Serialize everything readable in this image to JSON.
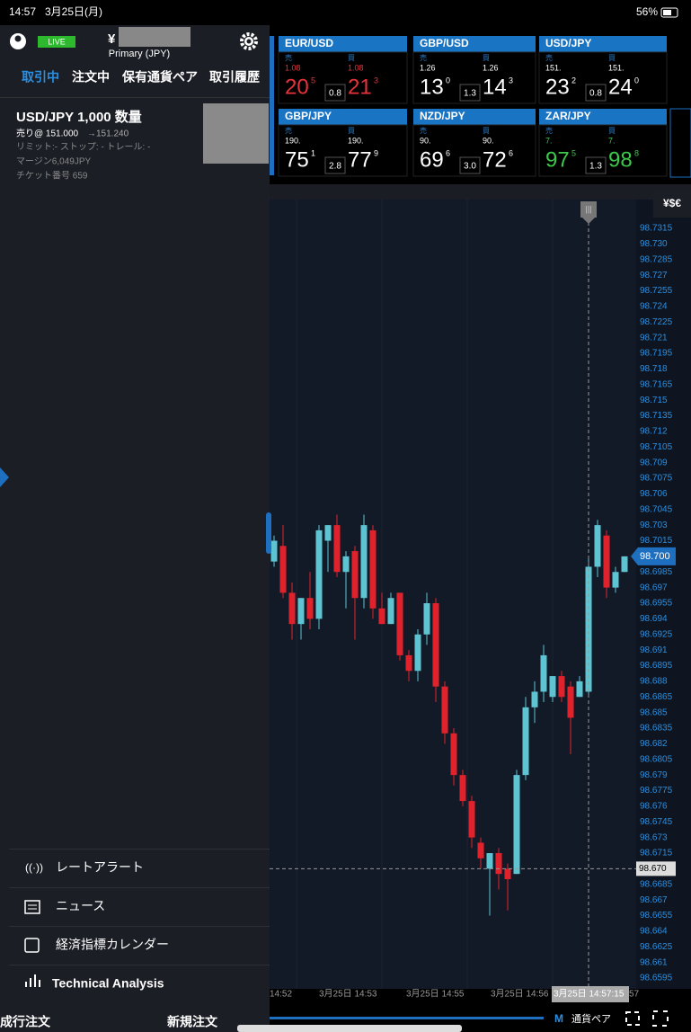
{
  "status_bar": {
    "time": "14:57",
    "date": "3月25日(月)",
    "battery": "56%"
  },
  "account": {
    "badge": "LIVE",
    "currency_symbol": "¥",
    "account_name": "Primary (JPY)"
  },
  "tabs": [
    "取引中",
    "注文中",
    "保有通貨ペア",
    "取引履歴"
  ],
  "position": {
    "title": "USD/JPY 1,000 数量",
    "entry": "売り@ 151.000",
    "arrow_price": "→151.240",
    "orders": "リミット:- ストップ: - トレール: -",
    "margin": "マージン6,049JPY",
    "ticket": "チケット番号 659"
  },
  "menu": [
    "レートアラート",
    "ニュース",
    "経済指標カレンダー",
    "Technical Analysis"
  ],
  "bottom_bar": {
    "market_order": "成行注文",
    "new_order": "新規注文",
    "mode": "M",
    "pairs": "通貨ペア"
  },
  "rates": {
    "sell_label": "売",
    "buy_label": "買",
    "tiles": [
      {
        "pair": "EUR/USD",
        "color": "#e8323c",
        "sell_prefix": "1.08",
        "sell_big": "20",
        "sell_sup": "5",
        "buy_prefix": "1.08",
        "buy_big": "21",
        "buy_sup": "3",
        "spread": "0.8"
      },
      {
        "pair": "GBP/USD",
        "color": "#ffffff",
        "sell_prefix": "1.26",
        "sell_big": "13",
        "sell_sup": "0",
        "buy_prefix": "1.26",
        "buy_big": "14",
        "buy_sup": "3",
        "spread": "1.3"
      },
      {
        "pair": "USD/JPY",
        "color": "#ffffff",
        "sell_prefix": "151.",
        "sell_big": "23",
        "sell_sup": "2",
        "buy_prefix": "151.",
        "buy_big": "24",
        "buy_sup": "0",
        "spread": "0.8"
      },
      {
        "pair": "GBP/JPY",
        "color": "#ffffff",
        "sell_prefix": "190.",
        "sell_big": "75",
        "sell_sup": "1",
        "buy_prefix": "190.",
        "buy_big": "77",
        "buy_sup": "9",
        "spread": "2.8"
      },
      {
        "pair": "NZD/JPY",
        "color": "#ffffff",
        "sell_prefix": "90.",
        "sell_big": "69",
        "sell_sup": "6",
        "buy_prefix": "90.",
        "buy_big": "72",
        "buy_sup": "6",
        "spread": "3.0"
      },
      {
        "pair": "ZAR/JPY",
        "color": "#3cc84a",
        "sell_prefix": "7.",
        "sell_big": "97",
        "sell_sup": "5",
        "buy_prefix": "7.",
        "buy_big": "98",
        "buy_sup": "8",
        "spread": "1.3"
      }
    ]
  },
  "side_button": "¥$€",
  "chart": {
    "ylim": [
      98.6595,
      98.7315
    ],
    "price_labels": [
      "98.7315",
      "98.730",
      "98.7285",
      "98.727",
      "98.7255",
      "98.724",
      "98.7225",
      "98.721",
      "98.7195",
      "98.718",
      "98.7165",
      "98.715",
      "98.7135",
      "98.712",
      "98.7105",
      "98.709",
      "98.7075",
      "98.706",
      "98.7045",
      "98.703",
      "98.7015",
      "98.6985",
      "98.697",
      "98.6955",
      "98.694",
      "98.6925",
      "98.691",
      "98.6895",
      "98.688",
      "98.6865",
      "98.685",
      "98.6835",
      "98.682",
      "98.6805",
      "98.679",
      "98.6775",
      "98.676",
      "98.6745",
      "98.673",
      "98.6715",
      "98.6685",
      "98.667",
      "98.6655",
      "98.664",
      "98.6625",
      "98.661",
      "98.6595"
    ],
    "current_price": "98.700",
    "crosshair_price": "98.670",
    "time_labels": [
      "14:52",
      "3月25日 14:53",
      "3月25日 14:55",
      "3月25日 14:56"
    ],
    "crosshair_time": "3月25日 14:57:15",
    "time_fragment": "57",
    "up_color": "#5ec4d2",
    "down_color": "#e0222c",
    "candles": [
      [
        98.6995,
        98.702,
        98.699,
        98.7015
      ],
      [
        98.701,
        98.703,
        98.696,
        98.6965
      ],
      [
        98.6965,
        98.6975,
        98.692,
        98.6935
      ],
      [
        98.6935,
        98.696,
        98.692,
        98.696
      ],
      [
        98.696,
        98.6985,
        98.693,
        98.694
      ],
      [
        98.694,
        98.703,
        98.693,
        98.7025
      ],
      [
        98.7015,
        98.703,
        98.6985,
        98.703
      ],
      [
        98.703,
        98.704,
        98.698,
        98.6985
      ],
      [
        98.6985,
        98.7005,
        98.695,
        98.7
      ],
      [
        98.7005,
        98.701,
        98.692,
        98.696
      ],
      [
        98.696,
        98.704,
        98.695,
        98.703
      ],
      [
        98.7025,
        98.703,
        98.694,
        98.695
      ],
      [
        98.695,
        98.6965,
        98.6935,
        98.6935
      ],
      [
        98.6935,
        98.6965,
        98.6935,
        98.696
      ],
      [
        98.6965,
        98.6965,
        98.69,
        98.6905
      ],
      [
        98.6905,
        98.691,
        98.688,
        98.689
      ],
      [
        98.689,
        98.693,
        98.688,
        98.6925
      ],
      [
        98.6925,
        98.6965,
        98.6915,
        98.6955
      ],
      [
        98.6955,
        98.696,
        98.686,
        98.6875
      ],
      [
        98.6875,
        98.688,
        98.682,
        98.683
      ],
      [
        98.683,
        98.6835,
        98.678,
        98.679
      ],
      [
        98.679,
        98.6795,
        98.676,
        98.6765
      ],
      [
        98.6765,
        98.677,
        98.672,
        98.673
      ],
      [
        98.6725,
        98.673,
        98.67,
        98.671
      ],
      [
        98.67,
        98.6715,
        98.6655,
        98.6715
      ],
      [
        98.6715,
        98.672,
        98.668,
        98.6695
      ],
      [
        98.67,
        98.6705,
        98.666,
        98.669
      ],
      [
        98.6695,
        98.6795,
        98.6695,
        98.679
      ],
      [
        98.679,
        98.6865,
        98.6785,
        98.6855
      ],
      [
        98.6855,
        98.688,
        98.684,
        98.687
      ],
      [
        98.687,
        98.6915,
        98.686,
        98.6905
      ],
      [
        98.6865,
        98.6885,
        98.686,
        98.6885
      ],
      [
        98.6885,
        98.689,
        98.686,
        98.6865
      ],
      [
        98.6875,
        98.688,
        98.681,
        98.6845
      ],
      [
        98.6865,
        98.6885,
        98.6865,
        98.688
      ],
      [
        98.687,
        98.7,
        98.6865,
        98.699
      ],
      [
        98.699,
        98.7035,
        98.698,
        98.703
      ],
      [
        98.702,
        98.7025,
        98.696,
        98.697
      ],
      [
        98.697,
        98.699,
        98.6965,
        98.6985
      ],
      [
        98.6985,
        98.7,
        98.6985,
        98.7
      ]
    ]
  }
}
